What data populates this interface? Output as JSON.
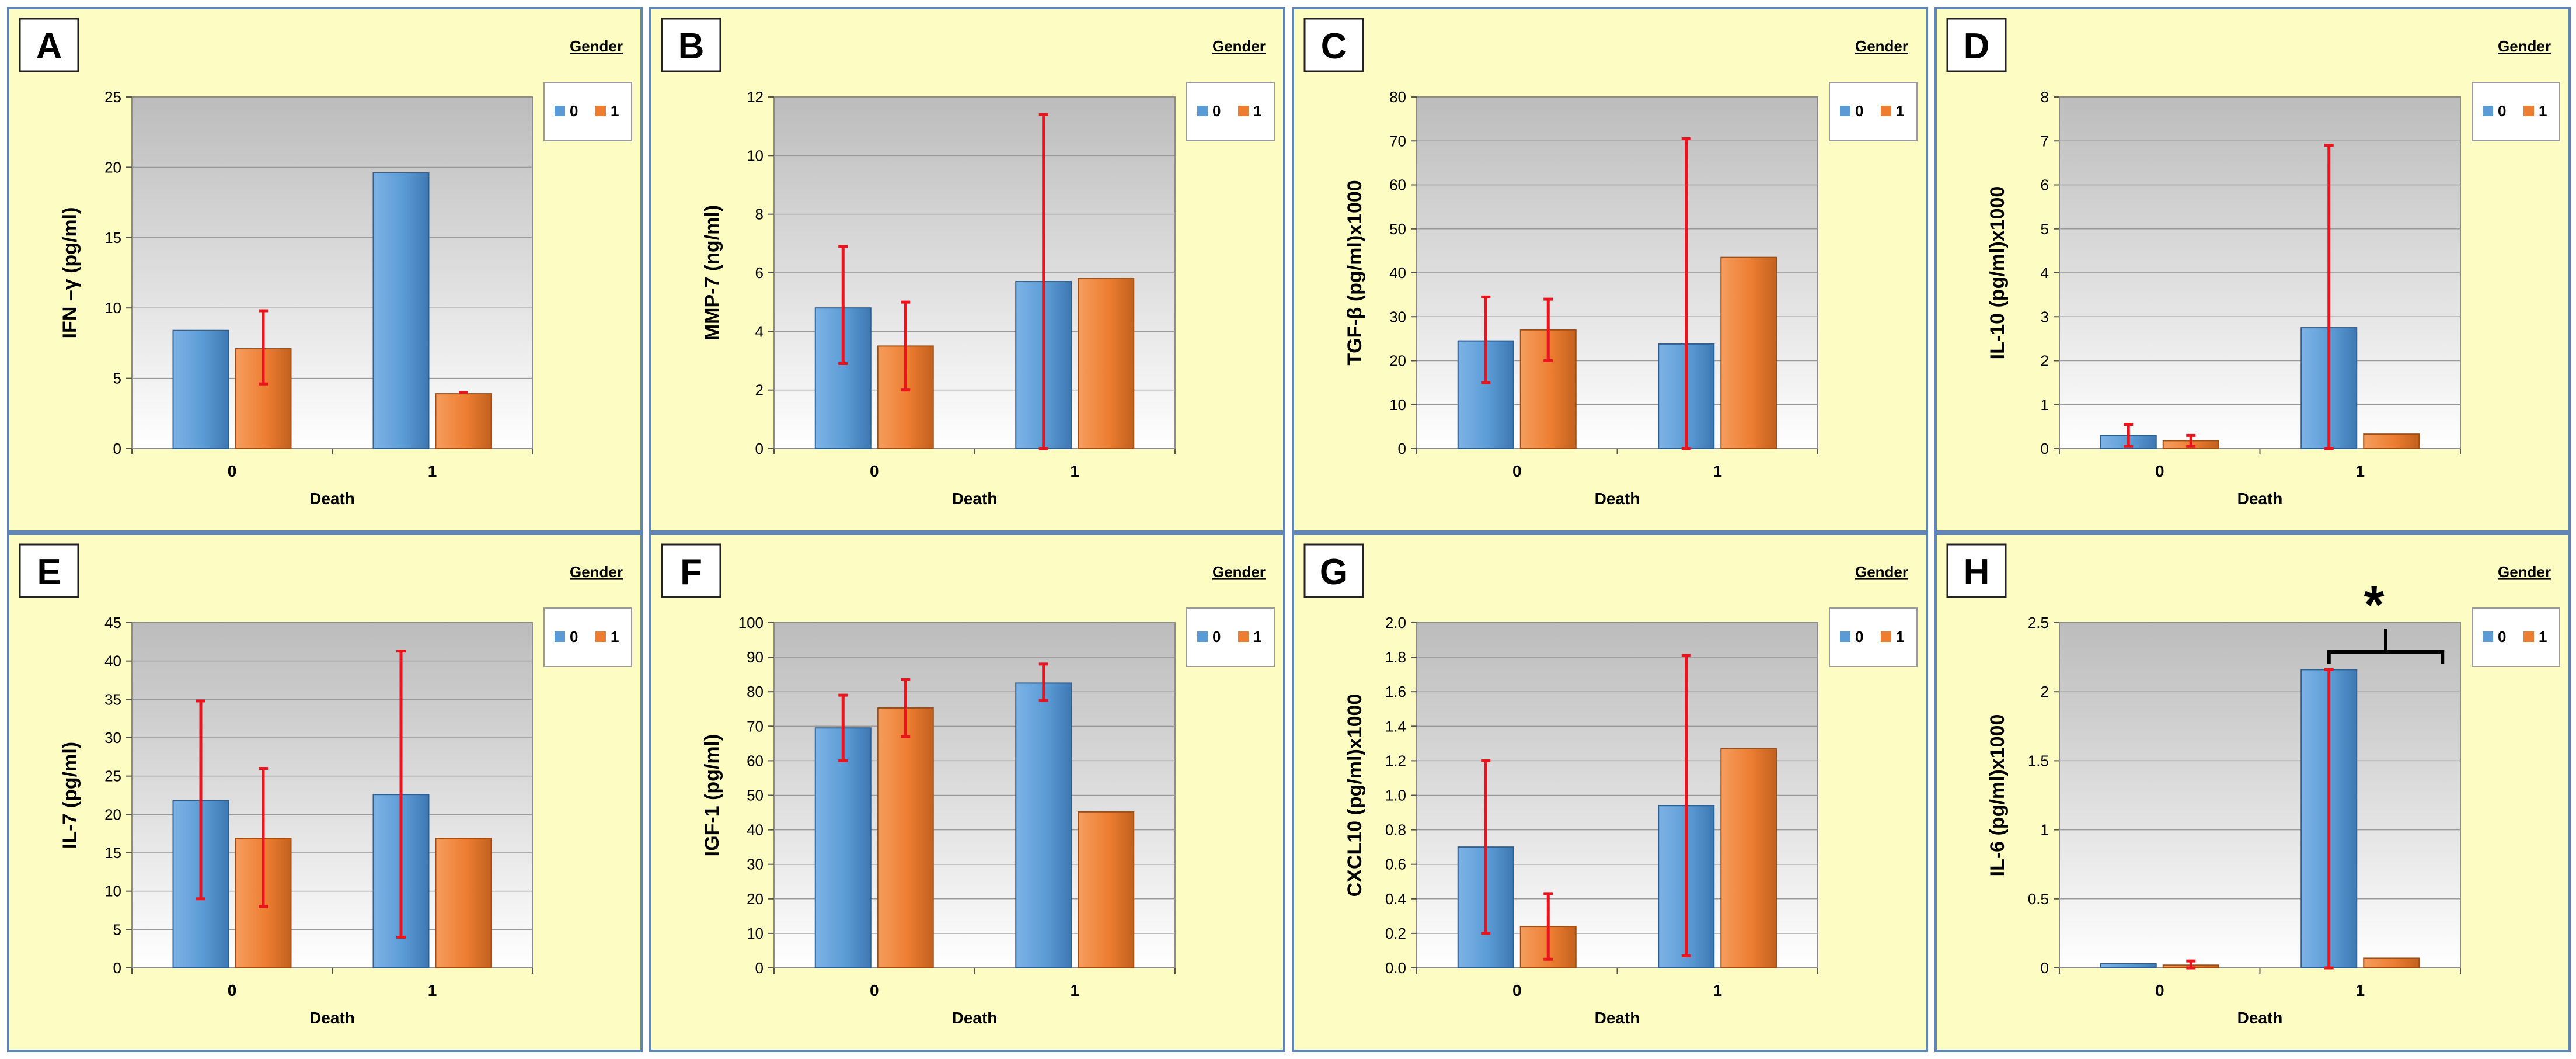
{
  "colors": {
    "panel_bg": "#fdfdc3",
    "panel_border": "#5f86b6",
    "blue_bar": "#5b9bd5",
    "orange_bar": "#ed7d31",
    "error_bar": "#e8141e",
    "plot_top": "#bcbcbc",
    "plot_bottom": "#ffffff"
  },
  "chart_data": [
    {
      "type": "bar",
      "panel_label": "A",
      "title": "",
      "ylabel": "IFN –γ (pg/ml)",
      "xlabel": "Death",
      "legend_title": "Gender",
      "legend_position": "top-right",
      "ylim": [
        0,
        25
      ],
      "yticks": [
        "0",
        "5",
        "10",
        "15",
        "20",
        "25"
      ],
      "categories": [
        "0",
        "1"
      ],
      "series": [
        {
          "name": "0",
          "values": [
            8.4,
            19.6
          ],
          "err_low": [
            null,
            null
          ],
          "err_high": [
            null,
            null
          ]
        },
        {
          "name": "1",
          "values": [
            7.1,
            3.9
          ],
          "err_low": [
            4.6,
            null
          ],
          "err_high": [
            9.8,
            4.0
          ]
        }
      ],
      "annotation": ""
    },
    {
      "type": "bar",
      "panel_label": "B",
      "title": "",
      "ylabel": "MMP-7 (ng/ml)",
      "xlabel": "Death",
      "legend_title": "Gender",
      "legend_position": "top-right",
      "ylim": [
        0,
        12
      ],
      "yticks": [
        "0",
        "2",
        "4",
        "6",
        "8",
        "10",
        "12"
      ],
      "categories": [
        "0",
        "1"
      ],
      "series": [
        {
          "name": "0",
          "values": [
            4.8,
            5.7
          ],
          "err_low": [
            2.9,
            0.0
          ],
          "err_high": [
            6.9,
            11.4
          ]
        },
        {
          "name": "1",
          "values": [
            3.5,
            5.8
          ],
          "err_low": [
            2.0,
            null
          ],
          "err_high": [
            5.0,
            null
          ]
        }
      ],
      "annotation": ""
    },
    {
      "type": "bar",
      "panel_label": "C",
      "title": "",
      "ylabel": "TGF-β (pg/ml)x1000",
      "xlabel": "Death",
      "legend_title": "Gender",
      "legend_position": "top-right",
      "ylim": [
        0,
        80
      ],
      "yticks": [
        "0",
        "10",
        "20",
        "30",
        "40",
        "50",
        "60",
        "70",
        "80"
      ],
      "categories": [
        "0",
        "1"
      ],
      "series": [
        {
          "name": "0",
          "values": [
            24.5,
            23.8
          ],
          "err_low": [
            15.0,
            0.0
          ],
          "err_high": [
            34.5,
            70.5
          ]
        },
        {
          "name": "1",
          "values": [
            27.0,
            43.5
          ],
          "err_low": [
            20.0,
            null
          ],
          "err_high": [
            34.0,
            null
          ]
        }
      ],
      "annotation": ""
    },
    {
      "type": "bar",
      "panel_label": "D",
      "title": "",
      "ylabel": "IL-10 (pg/ml)x1000",
      "xlabel": "Death",
      "legend_title": "Gender",
      "legend_position": "top-right",
      "ylim": [
        0,
        8
      ],
      "yticks": [
        "0",
        "1",
        "2",
        "3",
        "4",
        "5",
        "6",
        "7",
        "8"
      ],
      "categories": [
        "0",
        "1"
      ],
      "series": [
        {
          "name": "0",
          "values": [
            0.3,
            2.75
          ],
          "err_low": [
            0.05,
            0.0
          ],
          "err_high": [
            0.55,
            6.9
          ]
        },
        {
          "name": "1",
          "values": [
            0.18,
            0.33
          ],
          "err_low": [
            0.05,
            null
          ],
          "err_high": [
            0.3,
            null
          ]
        }
      ],
      "annotation": ""
    },
    {
      "type": "bar",
      "panel_label": "E",
      "title": "",
      "ylabel": "IL-7 (pg/ml)",
      "xlabel": "Death",
      "legend_title": "Gender",
      "legend_position": "top-right",
      "ylim": [
        0,
        45
      ],
      "yticks": [
        "0",
        "5",
        "10",
        "15",
        "20",
        "25",
        "30",
        "35",
        "40",
        "45"
      ],
      "categories": [
        "0",
        "1"
      ],
      "series": [
        {
          "name": "0",
          "values": [
            21.8,
            22.6
          ],
          "err_low": [
            9.0,
            4.0
          ],
          "err_high": [
            34.8,
            41.3
          ]
        },
        {
          "name": "1",
          "values": [
            16.9,
            16.9
          ],
          "err_low": [
            8.0,
            null
          ],
          "err_high": [
            26.0,
            null
          ]
        }
      ],
      "annotation": ""
    },
    {
      "type": "bar",
      "panel_label": "F",
      "title": "",
      "ylabel": "IGF-1 (pg/ml)",
      "xlabel": "Death",
      "legend_title": "Gender",
      "legend_position": "top-right",
      "ylim": [
        0,
        100
      ],
      "yticks": [
        "0",
        "10",
        "20",
        "30",
        "40",
        "50",
        "60",
        "70",
        "80",
        "90",
        "100"
      ],
      "categories": [
        "0",
        "1"
      ],
      "series": [
        {
          "name": "0",
          "values": [
            69.5,
            82.5
          ],
          "err_low": [
            60.0,
            77.5
          ],
          "err_high": [
            79.0,
            88.0
          ]
        },
        {
          "name": "1",
          "values": [
            75.3,
            45.2
          ],
          "err_low": [
            67.0,
            null
          ],
          "err_high": [
            83.5,
            null
          ]
        }
      ],
      "annotation": ""
    },
    {
      "type": "bar",
      "panel_label": "G",
      "title": "",
      "ylabel": "CXCL10 (pg/ml)x1000",
      "xlabel": "Death",
      "legend_title": "Gender",
      "legend_position": "top-right",
      "ylim": [
        0,
        2.0
      ],
      "yticks": [
        "0.0",
        "0.2",
        "0.4",
        "0.6",
        "0.8",
        "1.0",
        "1.2",
        "1.4",
        "1.6",
        "1.8",
        "2.0"
      ],
      "categories": [
        "0",
        "1"
      ],
      "series": [
        {
          "name": "0",
          "values": [
            0.7,
            0.94
          ],
          "err_low": [
            0.2,
            0.07
          ],
          "err_high": [
            1.2,
            1.81
          ]
        },
        {
          "name": "1",
          "values": [
            0.24,
            1.27
          ],
          "err_low": [
            0.05,
            null
          ],
          "err_high": [
            0.43,
            null
          ]
        }
      ],
      "annotation": ""
    },
    {
      "type": "bar",
      "panel_label": "H",
      "title": "",
      "ylabel": "IL-6 (pg/ml)x1000",
      "xlabel": "Death",
      "legend_title": "Gender",
      "legend_position": "top-right",
      "ylim": [
        0,
        2.5
      ],
      "yticks": [
        "0",
        "0.5",
        "1",
        "1.5",
        "2",
        "2.5"
      ],
      "categories": [
        "0",
        "1"
      ],
      "series": [
        {
          "name": "0",
          "values": [
            0.03,
            2.16
          ],
          "err_low": [
            null,
            0.0
          ],
          "err_high": [
            null,
            2.16
          ]
        },
        {
          "name": "1",
          "values": [
            0.02,
            0.07
          ],
          "err_low": [
            0.0,
            null
          ],
          "err_high": [
            0.05,
            null
          ]
        }
      ],
      "annotation": "*"
    }
  ]
}
